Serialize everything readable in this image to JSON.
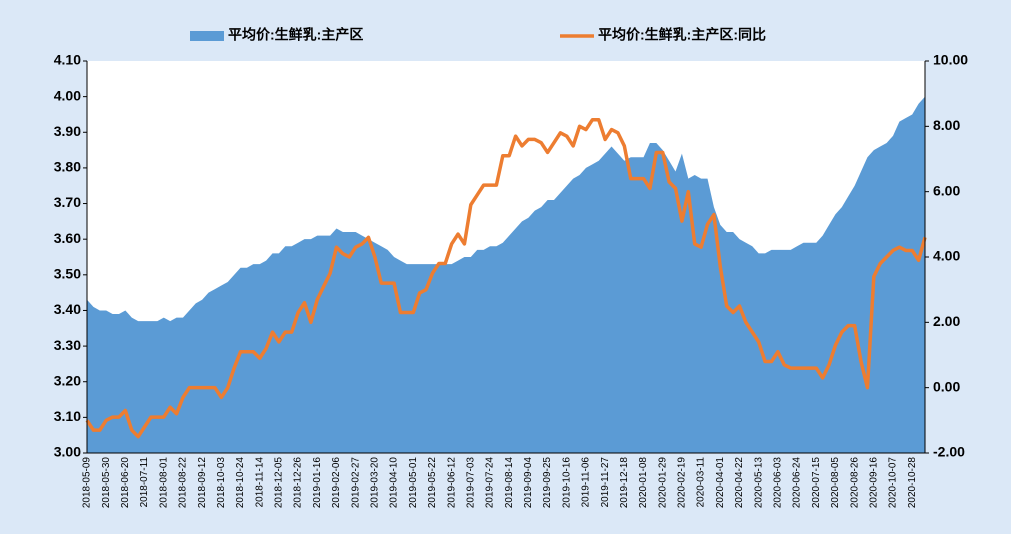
{
  "chart_data": {
    "type": "area_line",
    "categories": [
      "2018-05-09",
      null,
      null,
      "2018-05-30",
      null,
      null,
      "2018-06-20",
      null,
      null,
      "2018-07-11",
      null,
      null,
      "2018-08-01",
      null,
      null,
      "2018-08-22",
      null,
      null,
      "2018-09-12",
      null,
      null,
      "2018-10-03",
      null,
      null,
      "2018-10-24",
      null,
      null,
      "2018-11-14",
      null,
      null,
      "2018-12-05",
      null,
      null,
      "2018-12-26",
      null,
      null,
      "2019-01-16",
      null,
      null,
      "2019-02-06",
      null,
      null,
      "2019-02-27",
      null,
      null,
      "2019-03-20",
      null,
      null,
      "2019-04-10",
      null,
      null,
      "2019-05-01",
      null,
      null,
      "2019-05-22",
      null,
      null,
      "2019-06-12",
      null,
      null,
      "2019-07-03",
      null,
      null,
      "2019-07-24",
      null,
      null,
      "2019-08-14",
      null,
      null,
      "2019-09-04",
      null,
      null,
      "2019-09-25",
      null,
      null,
      "2019-10-16",
      null,
      null,
      "2019-11-06",
      null,
      null,
      "2019-11-27",
      null,
      null,
      "2019-12-18",
      null,
      null,
      "2020-01-08",
      null,
      null,
      "2020-01-29",
      null,
      null,
      "2020-02-19",
      null,
      null,
      "2020-03-11",
      null,
      null,
      "2020-04-01",
      null,
      null,
      "2020-04-22",
      null,
      null,
      "2020-05-13",
      null,
      null,
      "2020-06-03",
      null,
      null,
      "2020-06-24",
      null,
      null,
      "2020-07-15",
      null,
      null,
      "2020-08-05",
      null,
      null,
      "2020-08-26",
      null,
      null,
      "2020-09-16",
      null,
      null,
      "2020-10-07",
      null,
      null,
      "2020-10-28",
      null,
      null
    ],
    "series": [
      {
        "name": "平均价:生鲜乳:主产区",
        "color": "#5b9bd5",
        "kind": "area",
        "axis": "y",
        "values": [
          3.43,
          3.41,
          3.4,
          3.4,
          3.39,
          3.39,
          3.4,
          3.38,
          3.37,
          3.37,
          3.37,
          3.37,
          3.38,
          3.37,
          3.38,
          3.38,
          3.4,
          3.42,
          3.43,
          3.45,
          3.46,
          3.47,
          3.48,
          3.5,
          3.52,
          3.52,
          3.53,
          3.53,
          3.54,
          3.56,
          3.56,
          3.58,
          3.58,
          3.59,
          3.6,
          3.6,
          3.61,
          3.61,
          3.61,
          3.63,
          3.62,
          3.62,
          3.62,
          3.61,
          3.6,
          3.59,
          3.58,
          3.57,
          3.55,
          3.54,
          3.53,
          3.53,
          3.53,
          3.53,
          3.53,
          3.53,
          3.53,
          3.53,
          3.54,
          3.55,
          3.55,
          3.57,
          3.57,
          3.58,
          3.58,
          3.59,
          3.61,
          3.63,
          3.65,
          3.66,
          3.68,
          3.69,
          3.71,
          3.71,
          3.73,
          3.75,
          3.77,
          3.78,
          3.8,
          3.81,
          3.82,
          3.84,
          3.86,
          3.84,
          3.82,
          3.83,
          3.83,
          3.83,
          3.87,
          3.87,
          3.85,
          3.82,
          3.79,
          3.84,
          3.77,
          3.78,
          3.77,
          3.77,
          3.69,
          3.64,
          3.62,
          3.62,
          3.6,
          3.59,
          3.58,
          3.56,
          3.56,
          3.57,
          3.57,
          3.57,
          3.57,
          3.58,
          3.59,
          3.59,
          3.59,
          3.61,
          3.64,
          3.67,
          3.69,
          3.72,
          3.75,
          3.79,
          3.83,
          3.85,
          3.86,
          3.87,
          3.89,
          3.93,
          3.94,
          3.95,
          3.98,
          4.0
        ]
      },
      {
        "name": "平均价:生鲜乳:主产区:同比",
        "color": "#ed7d31",
        "kind": "line",
        "axis": "y2",
        "values": [
          -1.0,
          -1.3,
          -1.3,
          -1.0,
          -0.9,
          -0.9,
          -0.7,
          -1.3,
          -1.5,
          -1.2,
          -0.9,
          -0.9,
          -0.9,
          -0.6,
          -0.8,
          -0.3,
          0.0,
          0.0,
          0.0,
          0.0,
          0.0,
          -0.3,
          0.0,
          0.6,
          1.1,
          1.1,
          1.1,
          0.9,
          1.2,
          1.7,
          1.4,
          1.7,
          1.7,
          2.3,
          2.6,
          2.0,
          2.7,
          3.1,
          3.5,
          4.3,
          4.1,
          4.0,
          4.3,
          4.4,
          4.6,
          4.0,
          3.2,
          3.2,
          3.2,
          2.3,
          2.3,
          2.3,
          2.9,
          3.0,
          3.5,
          3.8,
          3.8,
          4.4,
          4.7,
          4.4,
          5.6,
          5.9,
          6.2,
          6.2,
          6.2,
          7.1,
          7.1,
          7.7,
          7.4,
          7.6,
          7.6,
          7.5,
          7.2,
          7.5,
          7.8,
          7.7,
          7.4,
          8.0,
          7.9,
          8.2,
          8.2,
          7.6,
          7.9,
          7.8,
          7.4,
          6.4,
          6.4,
          6.4,
          6.1,
          7.2,
          7.2,
          6.3,
          6.1,
          5.1,
          6.0,
          4.4,
          4.3,
          5.0,
          5.3,
          3.7,
          2.5,
          2.3,
          2.5,
          2.0,
          1.7,
          1.4,
          0.8,
          0.8,
          1.1,
          0.7,
          0.6,
          0.6,
          0.6,
          0.6,
          0.6,
          0.3,
          0.7,
          1.3,
          1.7,
          1.9,
          1.9,
          0.8,
          0.0,
          3.4,
          3.8,
          4.0,
          4.2,
          4.3,
          4.2,
          4.2,
          3.9,
          4.6
        ]
      }
    ],
    "ylim": [
      3.0,
      4.1
    ],
    "yticks": [
      {
        "value": 3.0,
        "label": "3.00"
      },
      {
        "value": 3.1,
        "label": "3.10"
      },
      {
        "value": 3.2,
        "label": "3.20"
      },
      {
        "value": 3.3,
        "label": "3.30"
      },
      {
        "value": 3.4,
        "label": "3.40"
      },
      {
        "value": 3.5,
        "label": "3.50"
      },
      {
        "value": 3.6,
        "label": "3.60"
      },
      {
        "value": 3.7,
        "label": "3.70"
      },
      {
        "value": 3.8,
        "label": "3.80"
      },
      {
        "value": 3.9,
        "label": "3.90"
      },
      {
        "value": 4.0,
        "label": "4.00"
      },
      {
        "value": 4.1,
        "label": "4.10"
      }
    ],
    "y2lim": [
      -2,
      10
    ],
    "y2ticks": [
      {
        "value": -2,
        "label": "-2.00"
      },
      {
        "value": 0,
        "label": "0.00"
      },
      {
        "value": 2,
        "label": "2.00"
      },
      {
        "value": 4,
        "label": "4.00"
      },
      {
        "value": 6,
        "label": "6.00"
      },
      {
        "value": 8,
        "label": "8.00"
      },
      {
        "value": 10,
        "label": "10.00"
      }
    ],
    "legend": "top"
  }
}
